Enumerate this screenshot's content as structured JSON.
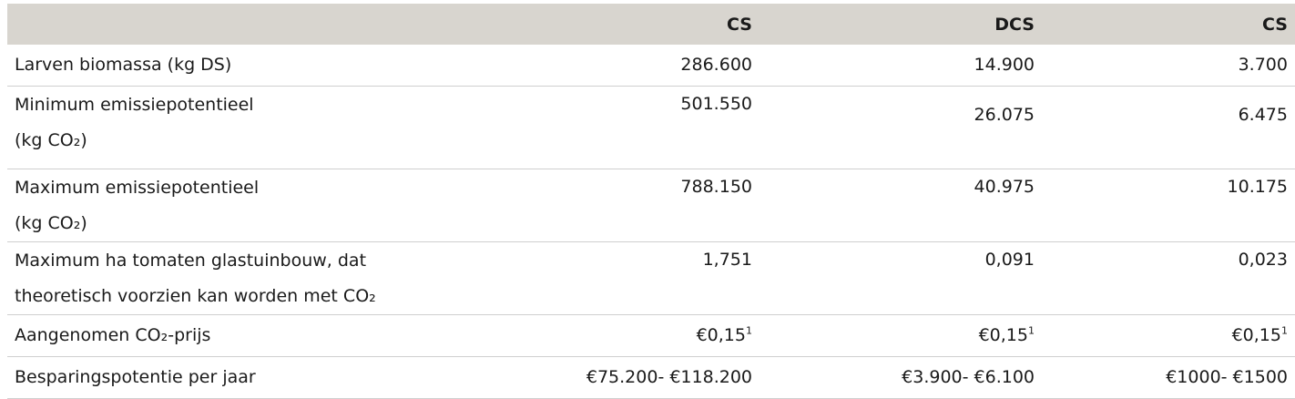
{
  "table": {
    "headers": [
      "",
      "CS",
      "DCS",
      "CS"
    ],
    "rows": [
      {
        "label_lines": [
          "Larven biomassa (kg DS)"
        ],
        "values": [
          "286.600",
          "14.900",
          "3.700"
        ]
      },
      {
        "label_lines": [
          "Minimum emissiepotentieel",
          "(kg CO₂)"
        ],
        "values": [
          "501.550",
          "26.075",
          "6.475"
        ]
      },
      {
        "label_lines": [
          "Maximum emissiepotentieel",
          "(kg CO₂)"
        ],
        "values": [
          "788.150",
          "40.975",
          "10.175"
        ]
      },
      {
        "label_lines": [
          "Maximum ha tomaten glastuinbouw, dat",
          "theoretisch voorzien kan worden met CO₂"
        ],
        "values": [
          "1,751",
          "0,091",
          "0,023"
        ]
      },
      {
        "label_lines": [
          "Aangenomen CO₂-prijs"
        ],
        "values": [
          "€0,15",
          "€0,15",
          "€0,15"
        ],
        "footnote": "1"
      },
      {
        "label_lines": [
          "Besparingspotentie per jaar"
        ],
        "values": [
          "€75.200- €118.200",
          "€3.900- €6.100",
          "€1000- €1500"
        ]
      }
    ]
  }
}
